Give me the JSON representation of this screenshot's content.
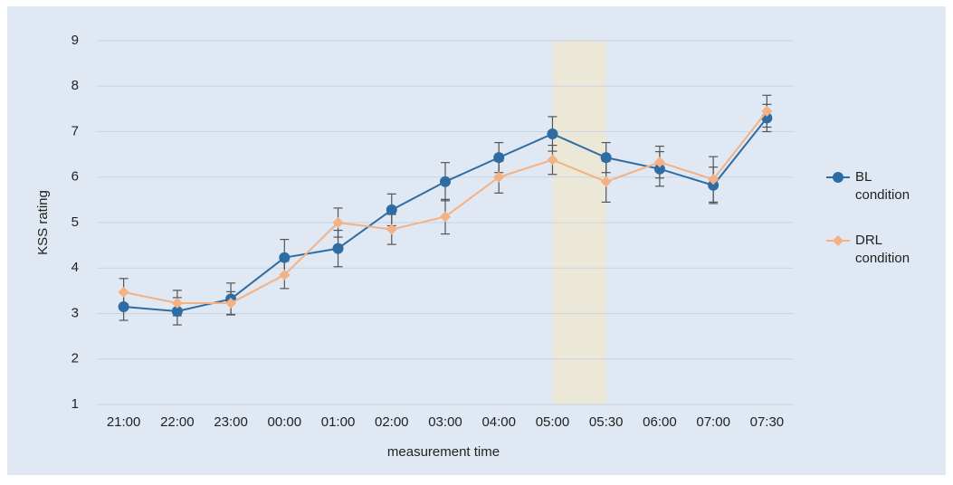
{
  "chart_data": {
    "type": "line",
    "xlabel": "measurement time",
    "ylabel": "KSS rating",
    "categories": [
      "21:00",
      "22:00",
      "23:00",
      "00:00",
      "01:00",
      "02:00",
      "03:00",
      "04:00",
      "05:00",
      "05:30",
      "06:00",
      "07:00",
      "07:30"
    ],
    "series": [
      {
        "name": "BL condition",
        "color": "#2e6da4",
        "marker": "circle",
        "values": [
          3.15,
          3.05,
          3.32,
          4.23,
          4.43,
          5.28,
          5.9,
          6.43,
          6.95,
          6.43,
          6.18,
          5.82,
          7.3
        ],
        "errors": [
          0.3,
          0.3,
          0.35,
          0.4,
          0.4,
          0.35,
          0.42,
          0.33,
          0.38,
          0.33,
          0.38,
          0.4,
          0.3
        ]
      },
      {
        "name": "DRL condition",
        "color": "#f4b183",
        "marker": "diamond",
        "values": [
          3.47,
          3.23,
          3.23,
          3.85,
          5.0,
          4.85,
          5.13,
          6.0,
          6.38,
          5.9,
          6.33,
          5.95,
          7.45
        ],
        "errors": [
          0.3,
          0.28,
          0.25,
          0.3,
          0.32,
          0.33,
          0.38,
          0.35,
          0.32,
          0.45,
          0.35,
          0.5,
          0.35
        ]
      }
    ],
    "highlight": [
      "05:00",
      "05:30"
    ],
    "ylim": [
      1,
      9
    ],
    "yticks": [
      1,
      2,
      3,
      4,
      5,
      6,
      7,
      8,
      9
    ],
    "grid": true,
    "legend": "right"
  }
}
